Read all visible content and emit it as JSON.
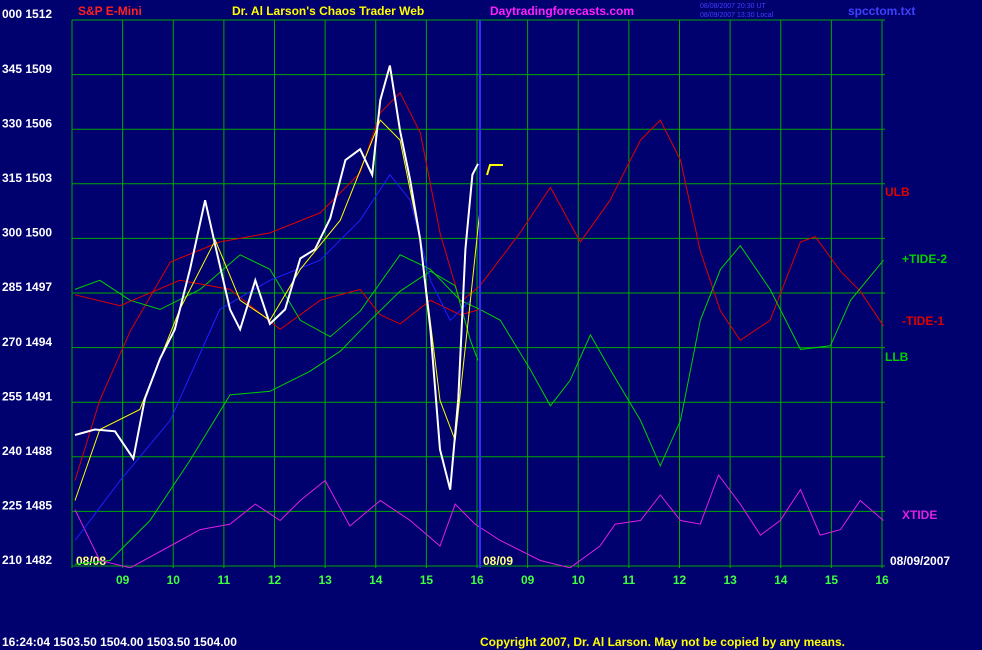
{
  "chart_data": {
    "type": "line",
    "title": "Dr. Al Larson's Chaos Trader Web",
    "instrument": "S&P E-Mini",
    "website": "Daytradingforecasts.com",
    "file": "spcctom.txt",
    "timestamps": [
      "08/08/2007 20:30 UT",
      "08/09/2007 13:30 Local"
    ],
    "date_labels": [
      "08/08",
      "08/09",
      "08/09/2007"
    ],
    "status": "16:24:04  1503.50  1504.00  1503.50  1504.00",
    "copyright": "Copyright 2007, Dr. Al Larson. May not be copied by any means.",
    "xlim": [
      0,
      16
    ],
    "xticks": [
      {
        "value": 1,
        "label": "09"
      },
      {
        "value": 2,
        "label": "10"
      },
      {
        "value": 3,
        "label": "11"
      },
      {
        "value": 4,
        "label": "12"
      },
      {
        "value": 5,
        "label": "13"
      },
      {
        "value": 6,
        "label": "14"
      },
      {
        "value": 7,
        "label": "15"
      },
      {
        "value": 8,
        "label": "16"
      },
      {
        "value": 9,
        "label": "09"
      },
      {
        "value": 10,
        "label": "10"
      },
      {
        "value": 11,
        "label": "11"
      },
      {
        "value": 12,
        "label": "12"
      },
      {
        "value": 13,
        "label": "13"
      },
      {
        "value": 14,
        "label": "14"
      },
      {
        "value": 15,
        "label": "15"
      },
      {
        "value": 16,
        "label": "16"
      }
    ],
    "ylim": [
      1482,
      1512
    ],
    "yticks": [
      {
        "value": 1482,
        "label": "210 1482"
      },
      {
        "value": 1485,
        "label": "225 1485"
      },
      {
        "value": 1488,
        "label": "240 1488"
      },
      {
        "value": 1491,
        "label": "255 1491"
      },
      {
        "value": 1494,
        "label": "270 1494"
      },
      {
        "value": 1497,
        "label": "285 1497"
      },
      {
        "value": 1500,
        "label": "300 1500"
      },
      {
        "value": 1503,
        "label": "315 1503"
      },
      {
        "value": 1506,
        "label": "330 1506"
      },
      {
        "value": 1509,
        "label": "345 1509"
      },
      {
        "value": 1512,
        "label": "000 1512"
      }
    ],
    "grid": true,
    "series": [
      {
        "name": "ULB",
        "color": "#e00000",
        "x": [
          0.06,
          0.55,
          1.15,
          1.94,
          2.92,
          3.91,
          4.9,
          5.69,
          6.09,
          6.48,
          6.88,
          7.27,
          7.67,
          8.06,
          8.85,
          9.45,
          10.04,
          10.63,
          11.23,
          11.62,
          12.02,
          12.41,
          12.81,
          13.2,
          13.79,
          14.39,
          14.68,
          15.18,
          15.57,
          16.03
        ],
        "values": [
          1486.7,
          1491.1,
          1494.9,
          1498.7,
          1499.8,
          1500.3,
          1501.4,
          1503.6,
          1506.9,
          1508.0,
          1505.8,
          1500.3,
          1496.5,
          1497.4,
          1500.3,
          1502.8,
          1499.8,
          1502.1,
          1505.4,
          1506.5,
          1504.3,
          1499.3,
          1496.0,
          1494.4,
          1495.5,
          1499.8,
          1500.1,
          1498.2,
          1497.1,
          1495.2
        ]
      },
      {
        "name": "+TIDE-2",
        "color": "#00d000",
        "x": [
          0.06,
          0.55,
          1.15,
          1.74,
          2.53,
          3.32,
          3.91,
          4.51,
          5.1,
          5.69,
          6.48,
          7.08,
          7.67,
          8.06,
          8.46,
          9.05,
          9.45,
          9.84,
          10.24,
          10.63,
          11.23,
          11.62,
          12.02,
          12.41,
          12.81,
          13.2,
          13.79,
          14.39,
          14.98,
          15.38,
          16.03
        ],
        "values": [
          1497.2,
          1497.7,
          1496.6,
          1496.1,
          1497.2,
          1499.1,
          1498.3,
          1495.5,
          1494.6,
          1496.0,
          1499.1,
          1498.3,
          1496.6,
          1496.1,
          1495.5,
          1492.8,
          1490.8,
          1492.2,
          1494.7,
          1492.8,
          1490.0,
          1487.5,
          1490.0,
          1495.5,
          1498.3,
          1499.6,
          1497.2,
          1493.9,
          1494.1,
          1496.6,
          1498.8
        ]
      },
      {
        "name": "-TIDE-1",
        "color": "#e00000",
        "x": [
          0.06,
          0.95,
          2.13,
          3.12,
          4.11,
          4.9,
          5.69,
          6.09,
          6.48,
          7.08,
          7.67,
          8.06
        ],
        "values": [
          1496.9,
          1496.3,
          1497.7,
          1497.2,
          1495.0,
          1496.6,
          1497.2,
          1495.8,
          1495.3,
          1496.6,
          1495.8,
          1496.1
        ]
      },
      {
        "name": "LLB",
        "color": "#00d000",
        "x": [
          0.06,
          0.75,
          1.54,
          2.33,
          3.12,
          3.91,
          4.7,
          5.3,
          5.89,
          6.48,
          7.08,
          7.57,
          7.87,
          8.02
        ],
        "values": [
          1482.1,
          1482.3,
          1484.5,
          1487.8,
          1491.4,
          1491.6,
          1492.7,
          1493.8,
          1495.5,
          1497.1,
          1498.2,
          1497.4,
          1494.4,
          1493.3
        ]
      },
      {
        "name": "XTIDE",
        "color": "#e020e0",
        "x": [
          0.06,
          0.55,
          1.15,
          1.94,
          2.53,
          3.12,
          3.62,
          4.11,
          4.51,
          5.0,
          5.49,
          6.09,
          6.68,
          7.27,
          7.57,
          7.96,
          8.46,
          9.25,
          9.84,
          10.43,
          10.73,
          11.23,
          11.62,
          12.02,
          12.41,
          12.77,
          13.2,
          13.6,
          13.99,
          14.39,
          14.78,
          15.18,
          15.57,
          16.03
        ],
        "values": [
          1485.1,
          1482.3,
          1481.9,
          1483.1,
          1484.0,
          1484.3,
          1485.4,
          1484.5,
          1485.6,
          1486.7,
          1484.2,
          1485.6,
          1484.5,
          1483.1,
          1485.4,
          1484.3,
          1483.4,
          1482.3,
          1481.9,
          1483.1,
          1484.3,
          1484.5,
          1485.9,
          1484.5,
          1484.3,
          1487.0,
          1485.4,
          1483.7,
          1484.5,
          1486.2,
          1483.7,
          1484.0,
          1485.6,
          1484.5
        ]
      },
      {
        "color": "#2020ff",
        "x": [
          0.06,
          0.95,
          1.94,
          2.92,
          3.91,
          4.9,
          5.69,
          6.28,
          6.68,
          7.08,
          7.47,
          7.87
        ],
        "values": [
          1483.4,
          1486.7,
          1490.0,
          1496.1,
          1497.7,
          1498.8,
          1501.0,
          1503.5,
          1502.1,
          1497.7,
          1495.5,
          1496.6
        ]
      },
      {
        "color": "#ffff00",
        "x": [
          0.06,
          0.55,
          1.34,
          2.13,
          2.83,
          3.32,
          3.91,
          4.51,
          5.3,
          6.09,
          6.48,
          6.88,
          7.27,
          7.57,
          7.87,
          8.06
        ],
        "values": [
          1485.6,
          1489.5,
          1490.6,
          1496.1,
          1499.9,
          1496.6,
          1495.5,
          1498.3,
          1501.0,
          1506.5,
          1505.4,
          1499.9,
          1491.1,
          1488.9,
          1496.6,
          1501.6
        ]
      },
      {
        "color": "#ffffff",
        "x": [
          0.06,
          0.45,
          0.85,
          1.21,
          1.44,
          1.74,
          2.03,
          2.33,
          2.63,
          2.83,
          3.12,
          3.32,
          3.62,
          3.91,
          4.21,
          4.51,
          4.8,
          5.1,
          5.4,
          5.69,
          5.93,
          6.09,
          6.28,
          6.48,
          6.68,
          6.88,
          7.08,
          7.27,
          7.47,
          7.63,
          7.77,
          7.91,
          8.02
        ],
        "values": [
          1489.2,
          1489.5,
          1489.4,
          1487.9,
          1491.2,
          1493.4,
          1495.0,
          1498.3,
          1502.1,
          1499.6,
          1496.1,
          1495.0,
          1497.7,
          1495.3,
          1496.1,
          1498.9,
          1499.4,
          1501.1,
          1504.3,
          1504.9,
          1503.5,
          1507.6,
          1509.5,
          1505.9,
          1503.2,
          1499.9,
          1495.0,
          1488.4,
          1486.2,
          1491.2,
          1499.4,
          1503.5,
          1504.1
        ]
      }
    ]
  }
}
